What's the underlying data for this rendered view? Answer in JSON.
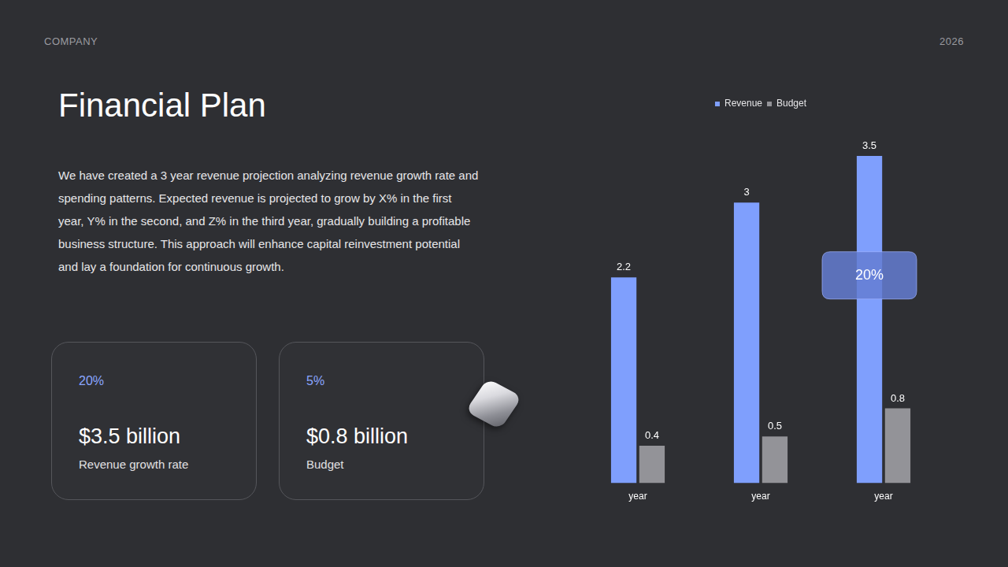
{
  "header": {
    "company": "COMPANY",
    "year": "2026"
  },
  "title": "Financial Plan",
  "body": "We have created a 3  year revenue projection analyzing revenue growth rate and spending patterns. Expected revenue is projected to grow by X% in the first year, Y% in the second, and Z% in the third year, gradually building a profitable business structure.  This approach will enhance capital reinvestment potential and lay a foundation for continuous growth.",
  "cards": [
    {
      "percent": "20%",
      "amount": "$3.5 billion",
      "label": "Revenue growth rate"
    },
    {
      "percent": "5%",
      "amount": "$0.8 billion",
      "label": "Budget"
    }
  ],
  "chart_data": {
    "type": "bar",
    "categories": [
      "year",
      "year",
      "year"
    ],
    "series": [
      {
        "name": "Revenue",
        "color": "#7f9ffd",
        "values": [
          2.2,
          3,
          3.5
        ]
      },
      {
        "name": "Budget",
        "color": "#939398",
        "values": [
          0.4,
          0.5,
          0.8
        ]
      }
    ],
    "ylim": [
      0,
      3.5
    ],
    "legend": "top",
    "data_labels": true,
    "tick_labels": "x",
    "grid": false,
    "annotations": [
      "20%"
    ]
  }
}
